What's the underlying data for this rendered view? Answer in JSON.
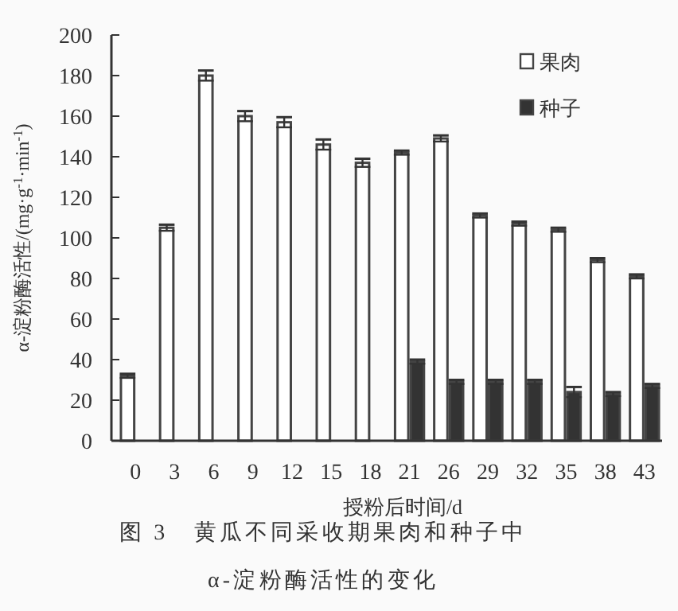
{
  "chart_data": {
    "type": "bar",
    "xlabel": "授粉后时间/d",
    "ylabel": "α-淀粉酶活性/(mg·g$^{-1}$·min$^{-1}$)",
    "categories": [
      "0",
      "3",
      "6",
      "9",
      "12",
      "15",
      "18",
      "21",
      "26",
      "29",
      "32",
      "35",
      "38",
      "43"
    ],
    "series": [
      {
        "name": "果肉",
        "color": "#ffffff",
        "values": [
          32,
          105,
          180,
          160,
          157,
          146,
          137,
          142,
          149,
          111,
          107,
          104,
          89,
          81
        ],
        "errors": [
          1,
          1.5,
          2.5,
          2.5,
          2.5,
          2.5,
          2,
          1,
          1.5,
          1,
          1,
          1,
          1,
          1
        ]
      },
      {
        "name": "种子",
        "color": "#333333",
        "values": [
          null,
          null,
          null,
          null,
          null,
          null,
          null,
          39,
          29,
          29,
          29,
          24,
          23,
          27
        ],
        "errors": [
          null,
          null,
          null,
          null,
          null,
          null,
          null,
          1,
          1,
          1,
          1,
          2.5,
          1,
          1
        ]
      }
    ],
    "ylim": [
      0,
      200
    ],
    "yticks": [
      0,
      20,
      40,
      60,
      80,
      100,
      120,
      140,
      160,
      180,
      200
    ],
    "grid": false,
    "legend": "top right",
    "annotations": [
      "图 3　黄瓜不同采收期果肉和种子中",
      "α-淀粉酶活性的变化"
    ]
  }
}
